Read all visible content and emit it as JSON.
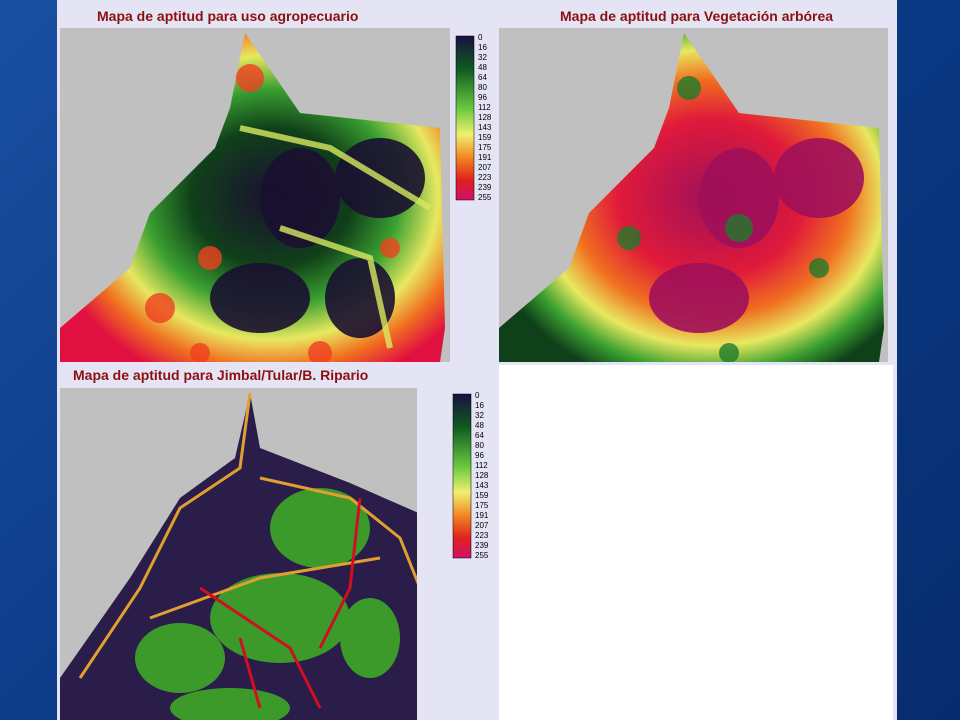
{
  "panels": [
    {
      "title": "Mapa de aptitud para uso agropecuario",
      "legend": [
        "0",
        "16",
        "32",
        "48",
        "64",
        "80",
        "96",
        "112",
        "128",
        "143",
        "159",
        "175",
        "191",
        "207",
        "223",
        "239",
        "255"
      ]
    },
    {
      "title": "Mapa de aptitud para Vegetación arbórea"
    },
    {
      "title": "Mapa de aptitud para Jimbal/Tular/B. Ripario",
      "legend": [
        "0",
        "16",
        "32",
        "48",
        "64",
        "80",
        "96",
        "112",
        "128",
        "143",
        "159",
        "175",
        "191",
        "207",
        "223",
        "239",
        "255"
      ]
    }
  ]
}
